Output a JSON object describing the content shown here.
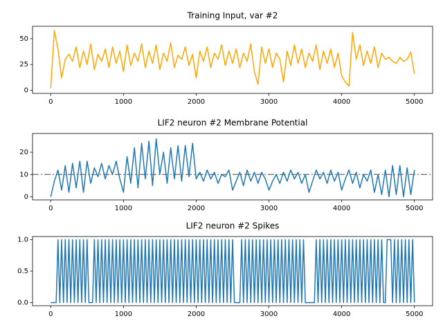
{
  "chart_data": [
    {
      "type": "line",
      "title": "Training Input, var #2",
      "x": [
        0,
        50,
        100,
        150,
        200,
        250,
        300,
        350,
        400,
        450,
        500,
        550,
        600,
        650,
        700,
        750,
        800,
        850,
        900,
        950,
        1000,
        1050,
        1100,
        1150,
        1200,
        1250,
        1300,
        1350,
        1400,
        1450,
        1500,
        1550,
        1600,
        1650,
        1700,
        1750,
        1800,
        1850,
        1900,
        1950,
        2000,
        2050,
        2100,
        2150,
        2200,
        2250,
        2300,
        2350,
        2400,
        2450,
        2500,
        2550,
        2600,
        2650,
        2700,
        2750,
        2800,
        2850,
        2900,
        2950,
        3000,
        3050,
        3100,
        3150,
        3200,
        3250,
        3300,
        3350,
        3400,
        3450,
        3500,
        3550,
        3600,
        3650,
        3700,
        3750,
        3800,
        3850,
        3900,
        3950,
        4000,
        4050,
        4100,
        4150,
        4200,
        4250,
        4300,
        4350,
        4400,
        4450,
        4500,
        4550,
        4600,
        4650,
        4700,
        4750,
        4800,
        4850,
        4900,
        4950,
        5000
      ],
      "series": [
        {
          "color": "#ffa500",
          "values": [
            2,
            58,
            40,
            12,
            30,
            35,
            28,
            42,
            22,
            38,
            25,
            45,
            20,
            35,
            28,
            40,
            22,
            42,
            26,
            38,
            18,
            44,
            24,
            36,
            28,
            45,
            22,
            38,
            26,
            44,
            20,
            36,
            28,
            46,
            22,
            34,
            30,
            42,
            24,
            35,
            12,
            38,
            28,
            42,
            22,
            36,
            30,
            44,
            24,
            38,
            26,
            40,
            22,
            36,
            28,
            45,
            18,
            6,
            42,
            26,
            40,
            22,
            36,
            30,
            8,
            38,
            24,
            44,
            26,
            40,
            22,
            36,
            28,
            44,
            20,
            38,
            26,
            40,
            22,
            36,
            14,
            8,
            4,
            56,
            30,
            44,
            24,
            38,
            26,
            42,
            22,
            36,
            30,
            32,
            28,
            26,
            32,
            28,
            30,
            37,
            16
          ]
        }
      ],
      "xlim": [
        -250,
        5250
      ],
      "ylim": [
        -3,
        62
      ],
      "xticks": [
        0,
        1000,
        2000,
        3000,
        4000,
        5000
      ],
      "yticks": [
        0,
        25,
        50
      ]
    },
    {
      "type": "line",
      "title": "LIF2 neuron #2 Membrane Potential",
      "x": [
        0,
        50,
        100,
        150,
        200,
        250,
        300,
        350,
        400,
        450,
        500,
        550,
        600,
        650,
        700,
        750,
        800,
        850,
        900,
        950,
        1000,
        1050,
        1100,
        1150,
        1200,
        1250,
        1300,
        1350,
        1400,
        1450,
        1500,
        1550,
        1600,
        1650,
        1700,
        1750,
        1800,
        1850,
        1900,
        1950,
        2000,
        2050,
        2100,
        2150,
        2200,
        2250,
        2300,
        2350,
        2400,
        2450,
        2500,
        2550,
        2600,
        2650,
        2700,
        2750,
        2800,
        2850,
        2900,
        2950,
        3000,
        3050,
        3100,
        3150,
        3200,
        3250,
        3300,
        3350,
        3400,
        3450,
        3500,
        3550,
        3600,
        3650,
        3700,
        3750,
        3800,
        3850,
        3900,
        3950,
        4000,
        4050,
        4100,
        4150,
        4200,
        4250,
        4300,
        4350,
        4400,
        4450,
        4500,
        4550,
        4600,
        4650,
        4700,
        4750,
        4800,
        4850,
        4900,
        4950,
        5000
      ],
      "series": [
        {
          "color": "#1f77b4",
          "values": [
            0,
            7,
            12,
            3,
            14,
            2,
            15,
            4,
            16,
            2,
            16,
            6,
            13,
            9,
            15,
            8,
            14,
            10,
            16,
            8,
            2,
            18,
            6,
            22,
            4,
            24,
            8,
            25,
            5,
            26,
            10,
            20,
            6,
            22,
            8,
            23,
            7,
            23,
            9,
            24,
            8,
            11,
            7,
            12,
            8,
            11,
            6,
            10,
            9,
            12,
            3,
            7,
            11,
            5,
            12,
            7,
            11,
            6,
            11,
            8,
            3,
            7,
            10,
            6,
            11,
            7,
            12,
            8,
            11,
            6,
            10,
            2,
            7,
            12,
            8,
            11,
            6,
            12,
            7,
            11,
            3,
            8,
            12,
            6,
            11,
            4,
            10,
            7,
            12,
            2,
            10,
            1,
            12,
            0,
            14,
            1,
            14,
            0,
            13,
            1,
            12
          ]
        }
      ],
      "hline": 10,
      "hline_color": "#808080",
      "xlim": [
        -250,
        5250
      ],
      "ylim": [
        -1.4,
        28.4
      ],
      "xticks": [
        0,
        1000,
        2000,
        3000,
        4000,
        5000
      ],
      "yticks": [
        0,
        10,
        20
      ]
    },
    {
      "type": "line",
      "title": "LIF2 neuron #2 Spikes",
      "x": [
        0,
        25,
        50,
        75,
        100,
        125,
        150,
        175,
        200,
        225,
        250,
        275,
        300,
        325,
        350,
        375,
        400,
        425,
        450,
        475,
        500,
        525,
        550,
        575,
        600,
        625,
        650,
        675,
        700,
        725,
        750,
        775,
        800,
        825,
        850,
        875,
        900,
        925,
        950,
        975,
        1000,
        1025,
        1050,
        1075,
        1100,
        1125,
        1150,
        1175,
        1200,
        1225,
        1250,
        1275,
        1300,
        1325,
        1350,
        1375,
        1400,
        1425,
        1450,
        1475,
        1500,
        1525,
        1550,
        1575,
        1600,
        1625,
        1650,
        1675,
        1700,
        1725,
        1750,
        1775,
        1800,
        1825,
        1850,
        1875,
        1900,
        1925,
        1950,
        1975,
        2000,
        2025,
        2050,
        2075,
        2100,
        2125,
        2150,
        2175,
        2200,
        2225,
        2250,
        2275,
        2300,
        2325,
        2350,
        2375,
        2400,
        2425,
        2450,
        2475,
        2500,
        2525,
        2550,
        2575,
        2600,
        2625,
        2650,
        2675,
        2700,
        2725,
        2750,
        2775,
        2800,
        2825,
        2850,
        2875,
        2900,
        2925,
        2950,
        2975,
        3000,
        3025,
        3050,
        3075,
        3100,
        3125,
        3150,
        3175,
        3200,
        3225,
        3250,
        3275,
        3300,
        3325,
        3350,
        3375,
        3400,
        3425,
        3450,
        3475,
        3500,
        3525,
        3550,
        3575,
        3600,
        3625,
        3650,
        3675,
        3700,
        3725,
        3750,
        3775,
        3800,
        3825,
        3850,
        3875,
        3900,
        3925,
        3950,
        3975,
        4000,
        4025,
        4050,
        4075,
        4100,
        4125,
        4150,
        4175,
        4200,
        4225,
        4250,
        4275,
        4300,
        4325,
        4350,
        4375,
        4400,
        4425,
        4450,
        4475,
        4500,
        4525,
        4550,
        4575,
        4600,
        4625,
        4650,
        4675,
        4700,
        4725,
        4750,
        4775,
        4800,
        4825,
        4850,
        4875,
        4900,
        4925,
        4950,
        4975,
        5000
      ],
      "series": [
        {
          "color": "#1f77b4",
          "values": [
            0,
            0,
            0,
            0,
            1,
            0,
            1,
            0,
            1,
            0,
            1,
            0,
            1,
            0,
            1,
            0,
            1,
            0,
            1,
            0,
            1,
            0,
            0,
            0,
            1,
            0,
            1,
            0,
            1,
            0,
            1,
            0,
            1,
            0,
            1,
            0,
            1,
            0,
            1,
            0,
            1,
            0,
            1,
            0,
            1,
            0,
            1,
            0,
            1,
            0,
            1,
            0,
            1,
            0,
            1,
            0,
            1,
            0,
            1,
            0,
            1,
            0,
            1,
            0,
            1,
            0,
            1,
            0,
            1,
            0,
            1,
            0,
            1,
            0,
            1,
            0,
            1,
            0,
            1,
            0,
            1,
            0,
            1,
            0,
            1,
            0,
            1,
            0,
            1,
            0,
            1,
            0,
            1,
            0,
            1,
            0,
            1,
            0,
            1,
            0,
            1,
            0,
            0,
            0,
            0,
            1,
            0,
            1,
            0,
            1,
            0,
            1,
            0,
            1,
            0,
            1,
            0,
            1,
            0,
            1,
            0,
            1,
            0,
            1,
            0,
            1,
            0,
            1,
            0,
            1,
            0,
            1,
            0,
            1,
            0,
            1,
            0,
            1,
            0,
            1,
            0,
            0,
            0,
            0,
            0,
            0,
            1,
            0,
            1,
            0,
            1,
            0,
            1,
            0,
            1,
            0,
            1,
            0,
            1,
            0,
            1,
            0,
            1,
            0,
            1,
            0,
            1,
            0,
            1,
            0,
            1,
            0,
            1,
            0,
            1,
            0,
            1,
            0,
            1,
            0,
            1,
            0,
            1,
            0,
            0,
            1,
            1,
            1,
            0,
            1,
            0,
            1,
            0,
            1,
            0,
            1,
            0,
            1,
            0,
            1,
            0
          ]
        }
      ],
      "xlim": [
        -250,
        5250
      ],
      "ylim": [
        -0.05,
        1.05
      ],
      "xticks": [
        0,
        1000,
        2000,
        3000,
        4000,
        5000
      ],
      "yticks": [
        {
          "value": 0,
          "label": "0.0"
        },
        {
          "value": 0.5,
          "label": "0.5"
        },
        {
          "value": 1,
          "label": "1.0"
        }
      ]
    }
  ]
}
